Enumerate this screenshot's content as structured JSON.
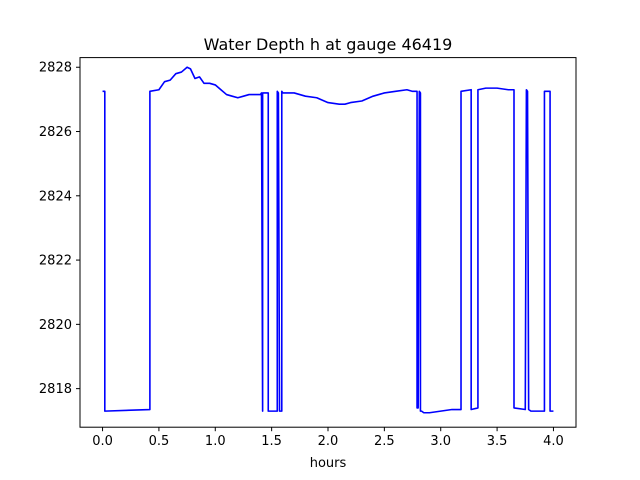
{
  "chart_data": {
    "type": "line",
    "title": "Water Depth h at gauge 46419",
    "xlabel": "hours",
    "ylabel": "",
    "xlim": [
      -0.2,
      4.2
    ],
    "ylim": [
      2816.8,
      2828.3
    ],
    "xticks": [
      0.0,
      0.5,
      1.0,
      1.5,
      2.0,
      2.5,
      3.0,
      3.5,
      4.0
    ],
    "xtick_labels": [
      "0.0",
      "0.5",
      "1.0",
      "1.5",
      "2.0",
      "2.5",
      "3.0",
      "3.5",
      "4.0"
    ],
    "yticks": [
      2818,
      2820,
      2822,
      2824,
      2826,
      2828
    ],
    "ytick_labels": [
      "2818",
      "2820",
      "2822",
      "2824",
      "2826",
      "2828"
    ],
    "grid": false,
    "series": [
      {
        "color": "#0000ff",
        "x": [
          0.0,
          0.02,
          0.02,
          0.42,
          0.42,
          0.5,
          0.55,
          0.6,
          0.65,
          0.7,
          0.75,
          0.78,
          0.82,
          0.86,
          0.9,
          0.95,
          1.0,
          1.05,
          1.1,
          1.15,
          1.2,
          1.25,
          1.3,
          1.4,
          1.41,
          1.42,
          1.42,
          1.45,
          1.47,
          1.47,
          1.53,
          1.55,
          1.55,
          1.56,
          1.57,
          1.59,
          1.59,
          1.6,
          1.7,
          1.8,
          1.9,
          2.0,
          2.1,
          2.15,
          2.2,
          2.3,
          2.4,
          2.5,
          2.6,
          2.7,
          2.75,
          2.79,
          2.79,
          2.8,
          2.81,
          2.82,
          2.82,
          2.83,
          2.85,
          2.9,
          3.0,
          3.1,
          3.18,
          3.18,
          3.27,
          3.27,
          3.33,
          3.33,
          3.4,
          3.5,
          3.6,
          3.65,
          3.65,
          3.75,
          3.76,
          3.77,
          3.78,
          3.78,
          3.8,
          3.9,
          3.92,
          3.92,
          3.97,
          3.97,
          4.0
        ],
        "y": [
          2827.25,
          2827.25,
          2817.3,
          2817.35,
          2827.25,
          2827.3,
          2827.55,
          2827.6,
          2827.8,
          2827.85,
          2828.0,
          2827.95,
          2827.65,
          2827.7,
          2827.5,
          2827.5,
          2827.45,
          2827.3,
          2827.15,
          2827.1,
          2827.05,
          2827.1,
          2827.15,
          2827.15,
          2827.2,
          2817.3,
          2827.2,
          2827.2,
          2827.2,
          2817.3,
          2817.3,
          2817.3,
          2827.25,
          2827.2,
          2817.3,
          2817.3,
          2827.25,
          2827.2,
          2827.2,
          2827.1,
          2827.05,
          2826.9,
          2826.85,
          2826.85,
          2826.9,
          2826.95,
          2827.1,
          2827.2,
          2827.25,
          2827.3,
          2827.25,
          2827.25,
          2817.4,
          2817.4,
          2827.25,
          2827.2,
          2817.3,
          2817.3,
          2817.25,
          2817.25,
          2817.3,
          2817.35,
          2817.35,
          2827.25,
          2827.3,
          2817.35,
          2817.4,
          2827.3,
          2827.35,
          2827.35,
          2827.3,
          2827.3,
          2817.4,
          2817.35,
          2827.3,
          2827.25,
          2817.35,
          2817.35,
          2817.3,
          2817.3,
          2817.3,
          2827.25,
          2827.25,
          2817.3,
          2817.3
        ]
      }
    ]
  }
}
